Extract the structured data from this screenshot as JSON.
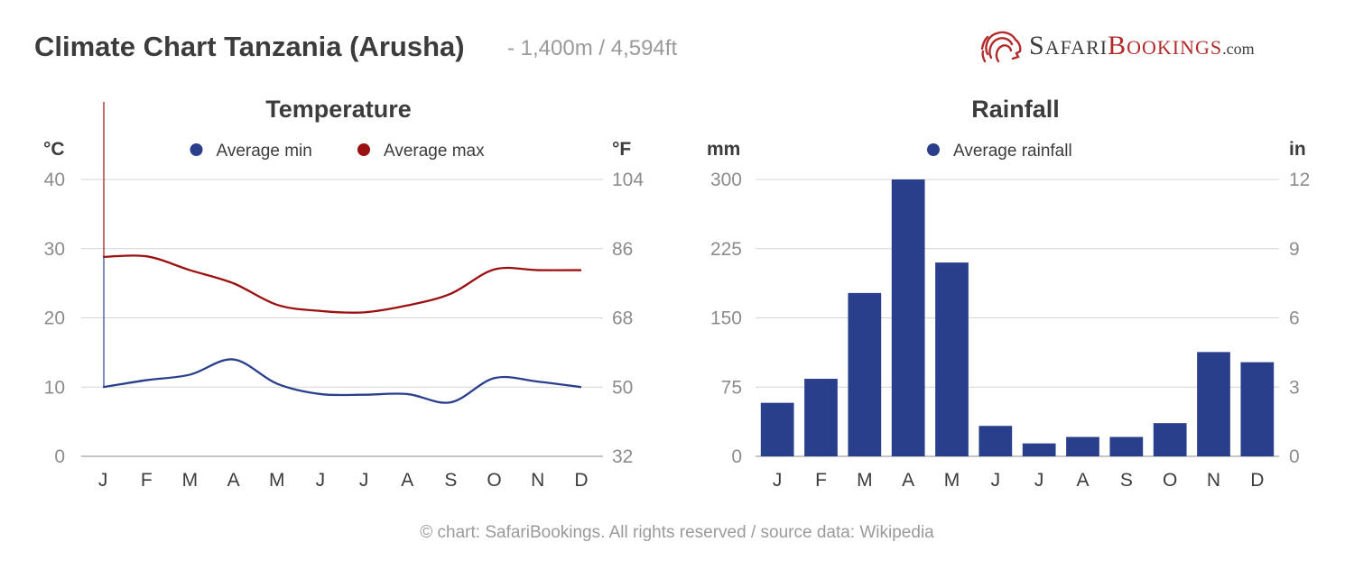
{
  "header": {
    "title": "Climate Chart Tanzania (Arusha)",
    "subtitle": "- 1,400m / 4,594ft",
    "logo": {
      "prefix": "S",
      "prefix_small": "AFARI",
      "brand": "B",
      "brand_small": "OOKINGS",
      "suffix": ".com"
    }
  },
  "footer": {
    "text": "© chart: SafariBookings. All rights reserved / source data: Wikipedia"
  },
  "chart_data": [
    {
      "type": "line",
      "title": "Temperature",
      "y_left_unit": "°C",
      "y_right_unit": "°F",
      "categories": [
        "J",
        "F",
        "M",
        "A",
        "M",
        "J",
        "J",
        "A",
        "S",
        "O",
        "N",
        "D"
      ],
      "ylim": [
        0,
        40
      ],
      "y_ticks": [
        0,
        10,
        20,
        30,
        40
      ],
      "y_right_ticks": [
        32,
        50,
        68,
        86,
        104
      ],
      "grid": true,
      "legend_position": "top-center",
      "series": [
        {
          "name": "Average min",
          "color": "#2a3f8c",
          "values": [
            10,
            11,
            11.8,
            14,
            10.5,
            9,
            8.9,
            9,
            7.8,
            11.3,
            10.8,
            10
          ]
        },
        {
          "name": "Average max",
          "color": "#9b1010",
          "values": [
            28.8,
            28.9,
            26.9,
            25,
            21.9,
            21,
            20.8,
            21.8,
            23.5,
            27,
            26.9,
            26.9
          ]
        }
      ]
    },
    {
      "type": "bar",
      "title": "Rainfall",
      "y_left_unit": "mm",
      "y_right_unit": "in",
      "categories": [
        "J",
        "F",
        "M",
        "A",
        "M",
        "J",
        "J",
        "A",
        "S",
        "O",
        "N",
        "D"
      ],
      "ylim": [
        0,
        300
      ],
      "y_ticks": [
        0,
        75,
        150,
        225,
        300
      ],
      "y_right_ticks": [
        0,
        3,
        6,
        9,
        12
      ],
      "grid": true,
      "legend_position": "top-center",
      "series": [
        {
          "name": "Average rainfall",
          "color": "#2a3f8c",
          "values": [
            58,
            84,
            177,
            300,
            210,
            33,
            14,
            21,
            21,
            36,
            113,
            102
          ]
        }
      ]
    }
  ]
}
